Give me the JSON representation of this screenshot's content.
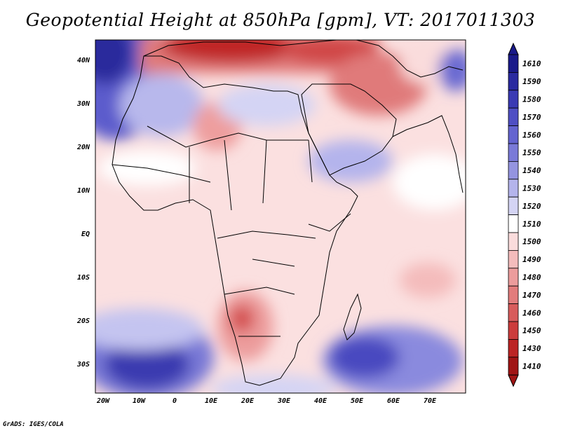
{
  "title": "Geopotential Height at 850hPa [gpm], VT: 2017011303",
  "credit": "GrADS: IGES/COLA",
  "map": {
    "lat_ticks": [
      "40N",
      "30N",
      "20N",
      "10N",
      "EQ",
      "10S",
      "20S",
      "30S"
    ],
    "lon_ticks": [
      "20W",
      "10W",
      "0",
      "10E",
      "20E",
      "30E",
      "40E",
      "50E",
      "60E",
      "70E"
    ]
  },
  "colorbar": {
    "levels": [
      "1610",
      "1590",
      "1580",
      "1570",
      "1560",
      "1550",
      "1540",
      "1530",
      "1520",
      "1510",
      "1500",
      "1490",
      "1480",
      "1470",
      "1460",
      "1450",
      "1430",
      "1410"
    ],
    "colors": [
      "#1a1a8a",
      "#2a2aa0",
      "#3a3ab4",
      "#4f4fc4",
      "#6464d0",
      "#7a7ad8",
      "#9494e0",
      "#b4b4ec",
      "#d4d4f4",
      "#ffffff",
      "#fadcdc",
      "#f4bcbc",
      "#ec9c9c",
      "#e27c7c",
      "#d85c5c",
      "#cc3c3c",
      "#bc2424",
      "#a01414"
    ]
  }
}
